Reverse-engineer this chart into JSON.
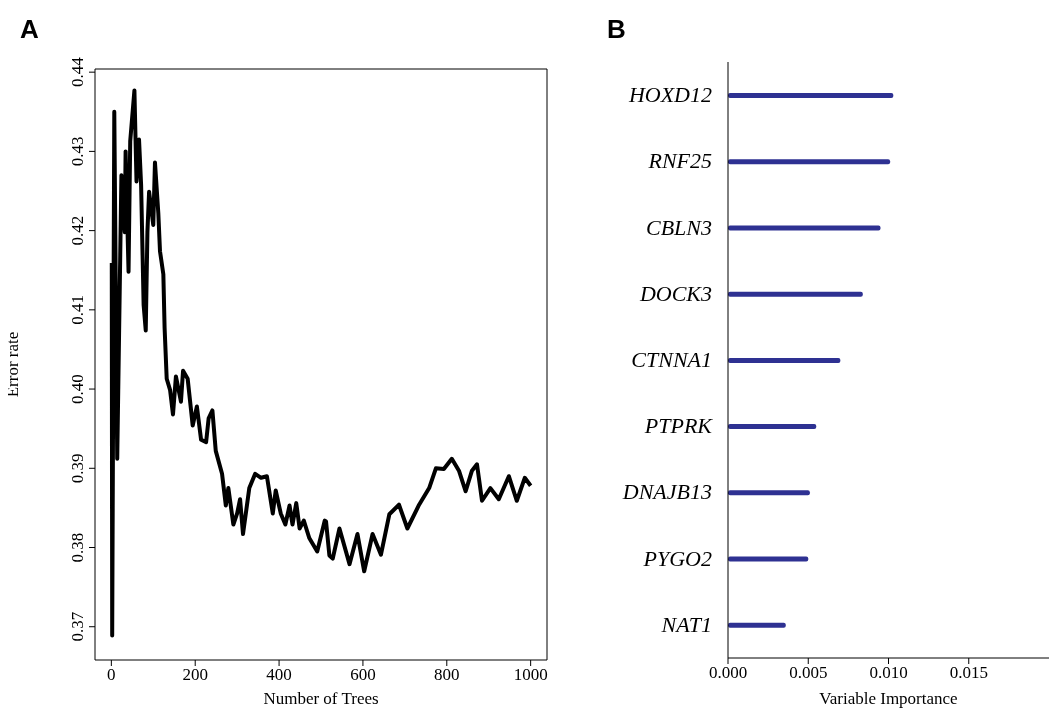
{
  "chart_data": [
    {
      "type": "line",
      "title": "A",
      "xlabel": "Number of Trees",
      "ylabel": "Error rate",
      "x": [
        1,
        2,
        7,
        14,
        24,
        32,
        34,
        41,
        45,
        55,
        60,
        66,
        71,
        77,
        82,
        86,
        90,
        100,
        104,
        112,
        116,
        124,
        127,
        132,
        140,
        147,
        154,
        166,
        171,
        182,
        194,
        204,
        214,
        226,
        232,
        241,
        249,
        264,
        273,
        279,
        291,
        300,
        307,
        314,
        329,
        343,
        357,
        371,
        385,
        392,
        404,
        415,
        425,
        432,
        441,
        449,
        459,
        472,
        491,
        509,
        512,
        520,
        528,
        544,
        568,
        587,
        603,
        623,
        643,
        663,
        686,
        706,
        734,
        758,
        774,
        793,
        812,
        829,
        845,
        860,
        872,
        884,
        904,
        924,
        948,
        967,
        986,
        1000
      ],
      "series": [
        {
          "color": "#000000",
          "values": [
            0.4159,
            0.3689,
            0.435,
            0.3912,
            0.427,
            0.4198,
            0.43,
            0.4148,
            0.4313,
            0.4377,
            0.4262,
            0.4315,
            0.4257,
            0.4106,
            0.4074,
            0.4198,
            0.4249,
            0.4207,
            0.4286,
            0.4222,
            0.4174,
            0.4145,
            0.4077,
            0.4013,
            0.3999,
            0.3968,
            0.4016,
            0.3984,
            0.4023,
            0.4013,
            0.3954,
            0.3978,
            0.3936,
            0.3933,
            0.3963,
            0.3973,
            0.3922,
            0.3893,
            0.3853,
            0.3875,
            0.3829,
            0.3843,
            0.3861,
            0.3817,
            0.3875,
            0.3893,
            0.3888,
            0.389,
            0.3843,
            0.3872,
            0.3843,
            0.3829,
            0.3853,
            0.3829,
            0.3856,
            0.3824,
            0.3834,
            0.3812,
            0.3795,
            0.3834,
            0.3833,
            0.379,
            0.3786,
            0.3824,
            0.3779,
            0.3817,
            0.377,
            0.3817,
            0.3791,
            0.3842,
            0.3854,
            0.3824,
            0.3854,
            0.3875,
            0.39,
            0.3899,
            0.3912,
            0.3897,
            0.3871,
            0.3897,
            0.3905,
            0.3859,
            0.3875,
            0.3861,
            0.389,
            0.3859,
            0.3888,
            0.3878
          ]
        }
      ],
      "xlim": [
        -39,
        1039
      ],
      "ylim": [
        0.3658,
        0.4404
      ],
      "xticks": [
        0,
        200,
        400,
        600,
        800,
        1000
      ],
      "yticks": [
        0.37,
        0.38,
        0.39,
        {
          "value": 0.4,
          "label": "0.40"
        },
        0.41,
        0.42,
        0.43,
        0.44
      ],
      "grid": false,
      "legend": false
    },
    {
      "type": "bar",
      "orientation": "horizontal",
      "title": "B",
      "xlabel": "Variable Importance",
      "categories": [
        "HOXD12",
        "RNF25",
        "CBLN3",
        "DOCK3",
        "CTNNA1",
        "PTPRK",
        "DNAJB13",
        "PYGO2",
        "NAT1"
      ],
      "values": [
        0.0103,
        0.0101,
        0.0095,
        0.0084,
        0.007,
        0.0055,
        0.0051,
        0.005,
        0.0036
      ],
      "color": "#2e3192",
      "xlim": [
        0,
        0.02
      ],
      "xticks": [
        {
          "value": 0,
          "label": "0.000"
        },
        {
          "value": 0.005,
          "label": "0.005"
        },
        {
          "value": 0.01,
          "label": "0.010"
        },
        {
          "value": 0.015,
          "label": "0.015"
        }
      ],
      "grid": false,
      "legend": false
    }
  ]
}
